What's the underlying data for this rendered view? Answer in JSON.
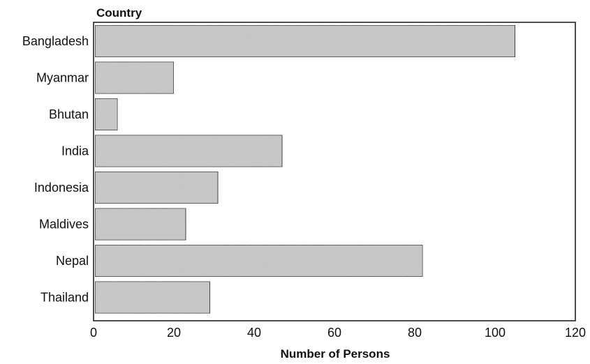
{
  "chart_data": {
    "type": "bar",
    "orientation": "horizontal",
    "categories": [
      "Bangladesh",
      "Myanmar",
      "Bhutan",
      "India",
      "Indonesia",
      "Maldives",
      "Nepal",
      "Thailand"
    ],
    "values": [
      105,
      20,
      6,
      47,
      31,
      23,
      82,
      29
    ],
    "xlabel": "Number of Persons",
    "ylabel": "Country",
    "xlim": [
      0,
      120
    ],
    "xticks": [
      0,
      20,
      40,
      60,
      80,
      100,
      120
    ],
    "grid": false,
    "bar_color": "#c8c8c8",
    "bar_edge_color": "#222222"
  }
}
